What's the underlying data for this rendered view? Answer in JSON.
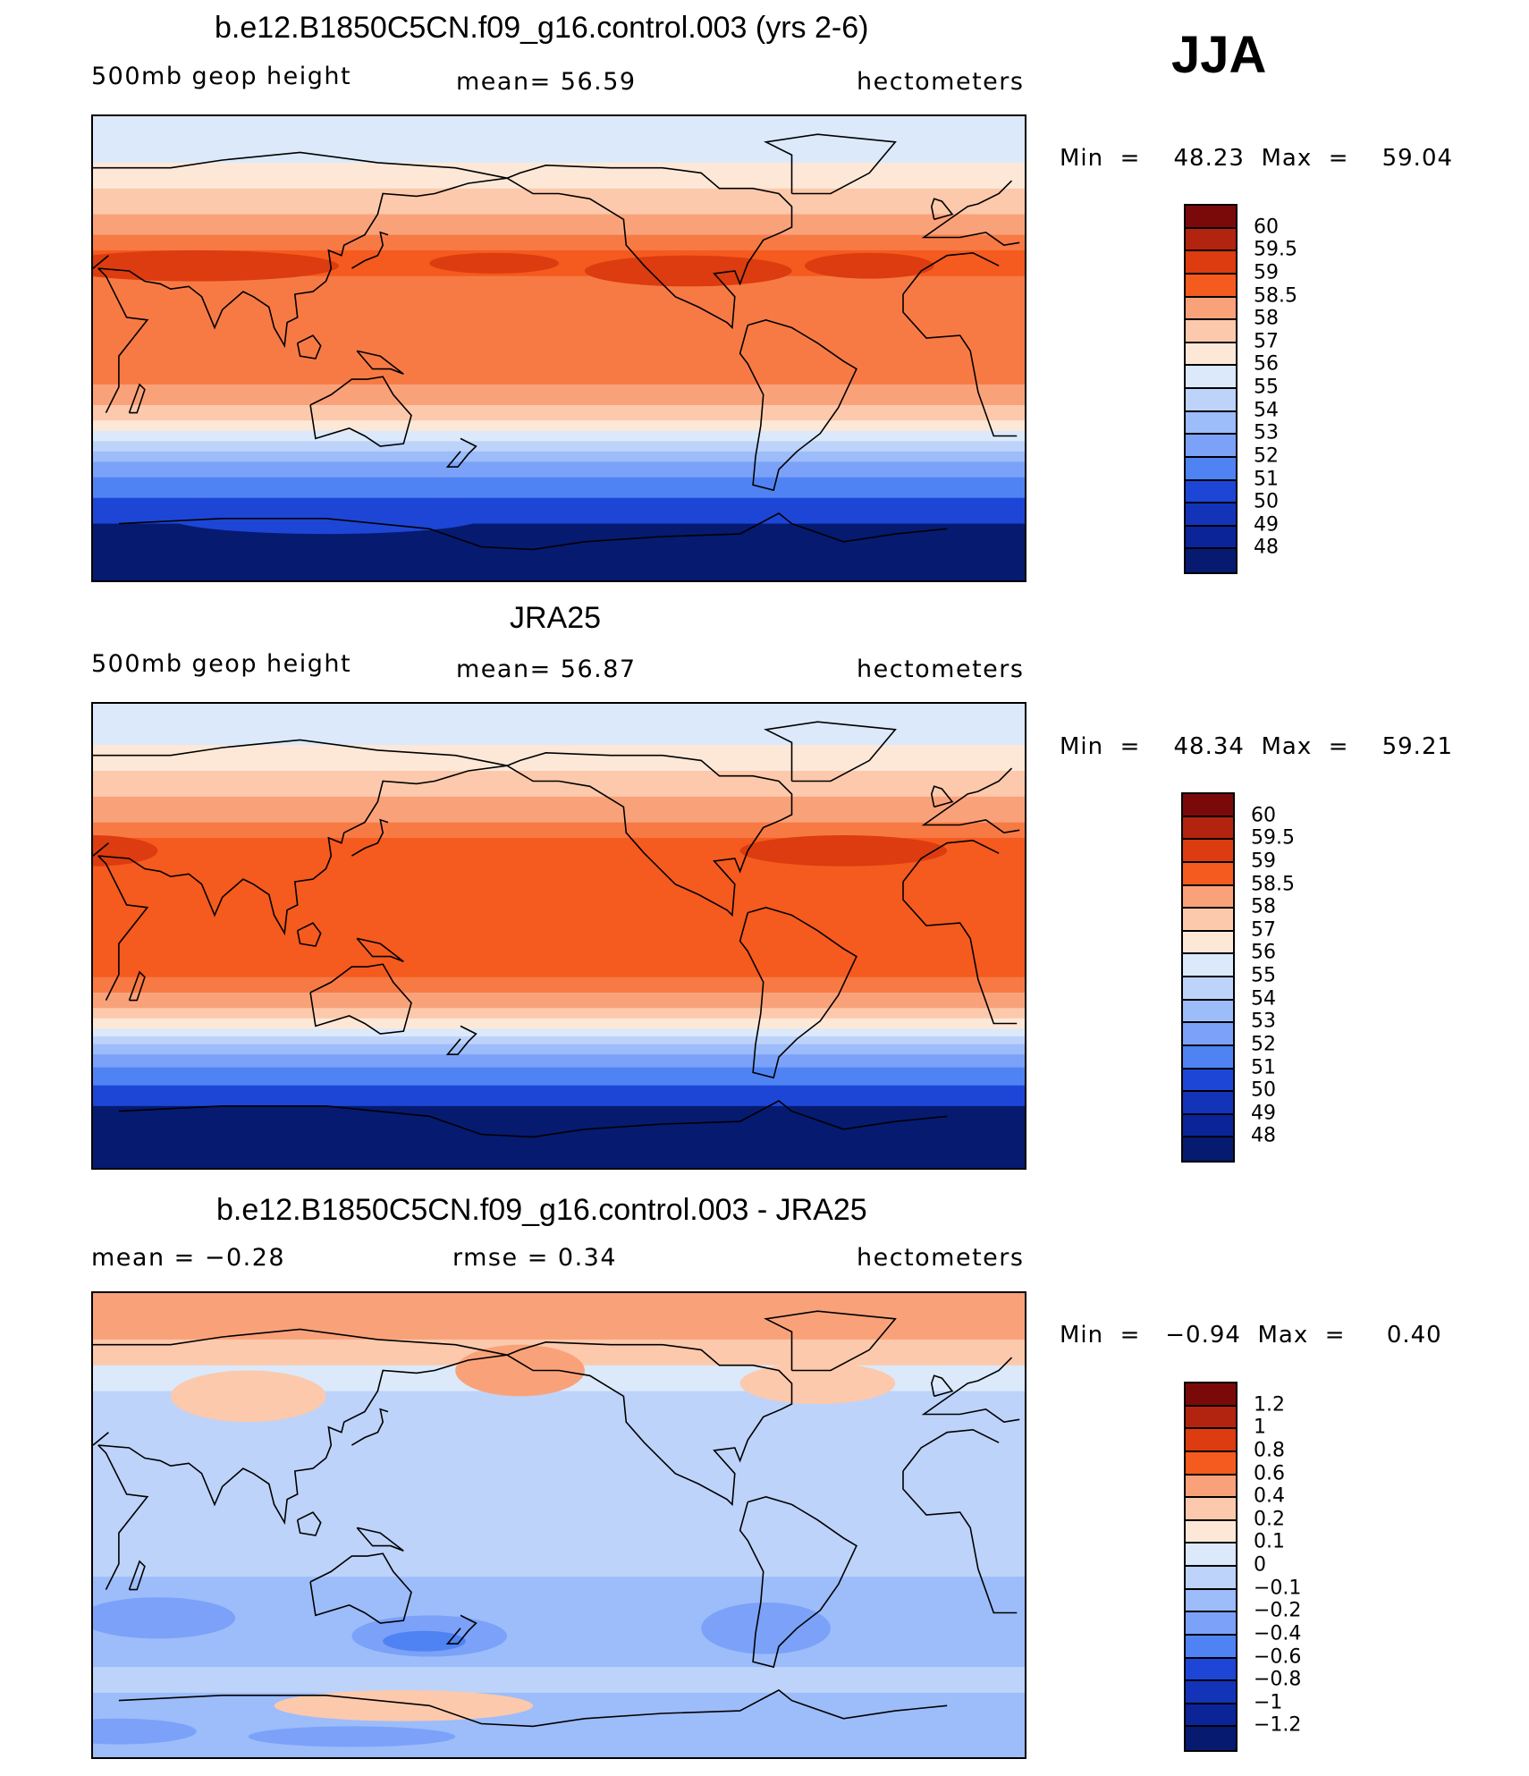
{
  "season": "JJA",
  "colors": {
    "warm": [
      "#7a0a0a",
      "#b32410",
      "#dc3c0f",
      "#f55a1e",
      "#f77a45",
      "#f9a27a",
      "#fcc9ac",
      "#fde8d8"
    ],
    "cool": [
      "#dbe9fb",
      "#bdd3fa",
      "#9dbcfa",
      "#7ba2f8",
      "#4f83f3",
      "#2d63ea",
      "#1d46d6",
      "#1334b8",
      "#0b2498",
      "#061a70"
    ],
    "coast": "#000000"
  },
  "panels": [
    {
      "title": "b.e12.B1850C5CN.f09_g16.control.003 (yrs 2-6)",
      "left_text": "500mb  geop  height",
      "center_text": "mean=   56.59",
      "right_text": "hectometers",
      "minmax": "Min  =    48.23  Max  =    59.04",
      "levels": [
        "60",
        "59.5",
        "59",
        "58.5",
        "58",
        "57",
        "56",
        "55",
        "54",
        "53",
        "52",
        "51",
        "50",
        "49",
        "48"
      ],
      "bands": [
        {
          "lat_top": 90,
          "lat_bot": 72,
          "level": "54"
        },
        {
          "lat_top": 72,
          "lat_bot": 62,
          "level": "55"
        },
        {
          "lat_top": 62,
          "lat_bot": 52,
          "level": "56"
        },
        {
          "lat_top": 52,
          "lat_bot": 44,
          "level": "57"
        },
        {
          "lat_top": 44,
          "lat_bot": 38,
          "level": "58"
        },
        {
          "lat_top": 38,
          "lat_bot": 28,
          "level": "58.5"
        },
        {
          "lat_top": 28,
          "lat_bot": -14,
          "level": "58"
        },
        {
          "lat_top": -14,
          "lat_bot": -22,
          "level": "57"
        },
        {
          "lat_top": -22,
          "lat_bot": -28,
          "level": "56"
        },
        {
          "lat_top": -28,
          "lat_bot": -32,
          "level": "55"
        },
        {
          "lat_top": -32,
          "lat_bot": -36,
          "level": "54"
        },
        {
          "lat_top": -36,
          "lat_bot": -40,
          "level": "53"
        },
        {
          "lat_top": -40,
          "lat_bot": -44,
          "level": "52"
        },
        {
          "lat_top": -44,
          "lat_bot": -50,
          "level": "51"
        },
        {
          "lat_top": -50,
          "lat_bot": -58,
          "level": "50"
        },
        {
          "lat_top": -58,
          "lat_bot": -68,
          "level": "49"
        },
        {
          "lat_top": -68,
          "lat_bot": -90,
          "level": "48"
        }
      ],
      "blobs": [
        {
          "lon": 70,
          "lat": 32,
          "rx": 55,
          "ry": 6,
          "level": "59"
        },
        {
          "lon": 185,
          "lat": 33,
          "rx": 25,
          "ry": 4,
          "level": "59"
        },
        {
          "lon": 260,
          "lat": 30,
          "rx": 40,
          "ry": 6,
          "level": "59"
        },
        {
          "lon": 330,
          "lat": 32,
          "rx": 25,
          "ry": 5,
          "level": "59"
        },
        {
          "lon": 120,
          "lat": -66,
          "rx": 60,
          "ry": 6,
          "level": "49"
        }
      ]
    },
    {
      "title": "JRA25",
      "left_text": "500mb  geop  height",
      "center_text": "mean=   56.87",
      "right_text": "hectometers",
      "minmax": "Min  =    48.34  Max  =    59.21",
      "levels": [
        "60",
        "59.5",
        "59",
        "58.5",
        "58",
        "57",
        "56",
        "55",
        "54",
        "53",
        "52",
        "51",
        "50",
        "49",
        "48"
      ],
      "bands": [
        {
          "lat_top": 90,
          "lat_bot": 74,
          "level": "54"
        },
        {
          "lat_top": 74,
          "lat_bot": 64,
          "level": "55"
        },
        {
          "lat_top": 64,
          "lat_bot": 54,
          "level": "56"
        },
        {
          "lat_top": 54,
          "lat_bot": 44,
          "level": "57"
        },
        {
          "lat_top": 44,
          "lat_bot": 38,
          "level": "58"
        },
        {
          "lat_top": 38,
          "lat_bot": -16,
          "level": "58.5"
        },
        {
          "lat_top": -16,
          "lat_bot": -22,
          "level": "58"
        },
        {
          "lat_top": -22,
          "lat_bot": -28,
          "level": "57"
        },
        {
          "lat_top": -28,
          "lat_bot": -32,
          "level": "56"
        },
        {
          "lat_top": -32,
          "lat_bot": -36,
          "level": "55"
        },
        {
          "lat_top": -36,
          "lat_bot": -39,
          "level": "54"
        },
        {
          "lat_top": -39,
          "lat_bot": -42,
          "level": "53"
        },
        {
          "lat_top": -42,
          "lat_bot": -46,
          "level": "52"
        },
        {
          "lat_top": -46,
          "lat_bot": -51,
          "level": "51"
        },
        {
          "lat_top": -51,
          "lat_bot": -58,
          "level": "50"
        },
        {
          "lat_top": -58,
          "lat_bot": -66,
          "level": "49"
        },
        {
          "lat_top": -66,
          "lat_bot": -90,
          "level": "48"
        }
      ],
      "blobs": [
        {
          "lon": 30,
          "lat": 33,
          "rx": 25,
          "ry": 6,
          "level": "59"
        },
        {
          "lon": 320,
          "lat": 33,
          "rx": 40,
          "ry": 6,
          "level": "59"
        },
        {
          "lon": 160,
          "lat": 28,
          "rx": 80,
          "ry": 8,
          "level": "58.5"
        }
      ]
    },
    {
      "title": "b.e12.B1850C5CN.f09_g16.control.003 - JRA25",
      "left_text": "mean  =    −0.28",
      "center_text": "rmse  =     0.34",
      "right_text": "hectometers",
      "minmax": "Min  =   −0.94  Max  =     0.40",
      "levels": [
        "1.2",
        "1",
        "0.8",
        "0.6",
        "0.4",
        "0.2",
        "0.1",
        "0",
        "−0.1",
        "−0.2",
        "−0.4",
        "−0.6",
        "−0.8",
        "−1",
        "−1.2"
      ],
      "bands": [
        {
          "lat_top": 90,
          "lat_bot": 72,
          "level": "0.2"
        },
        {
          "lat_top": 72,
          "lat_bot": 62,
          "level": "0.1"
        },
        {
          "lat_top": 62,
          "lat_bot": 52,
          "level": "−0.1"
        },
        {
          "lat_top": 52,
          "lat_bot": 44,
          "level": "−0.2"
        },
        {
          "lat_top": 44,
          "lat_bot": -20,
          "level": "−0.2"
        },
        {
          "lat_top": -20,
          "lat_bot": -55,
          "level": "−0.4"
        },
        {
          "lat_top": -55,
          "lat_bot": -65,
          "level": "−0.2"
        },
        {
          "lat_top": -65,
          "lat_bot": -90,
          "level": "−0.4"
        }
      ],
      "blobs": [
        {
          "lon": 195,
          "lat": 60,
          "rx": 25,
          "ry": 10,
          "level": "0.2"
        },
        {
          "lon": 90,
          "lat": 50,
          "rx": 30,
          "ry": 10,
          "level": "0.1"
        },
        {
          "lon": 310,
          "lat": 55,
          "rx": 30,
          "ry": 8,
          "level": "0.1"
        },
        {
          "lon": 160,
          "lat": -43,
          "rx": 30,
          "ry": 8,
          "level": "−0.6"
        },
        {
          "lon": 158,
          "lat": -45,
          "rx": 16,
          "ry": 4,
          "level": "−0.8"
        },
        {
          "lon": 55,
          "lat": -36,
          "rx": 30,
          "ry": 8,
          "level": "−0.6"
        },
        {
          "lon": 290,
          "lat": -40,
          "rx": 25,
          "ry": 10,
          "level": "−0.6"
        },
        {
          "lon": 40,
          "lat": -80,
          "rx": 30,
          "ry": 5,
          "level": "−0.6"
        },
        {
          "lon": 150,
          "lat": -70,
          "rx": 50,
          "ry": 6,
          "level": "0.1"
        },
        {
          "lon": 130,
          "lat": -82,
          "rx": 40,
          "ry": 4,
          "level": "−0.6"
        }
      ]
    }
  ]
}
